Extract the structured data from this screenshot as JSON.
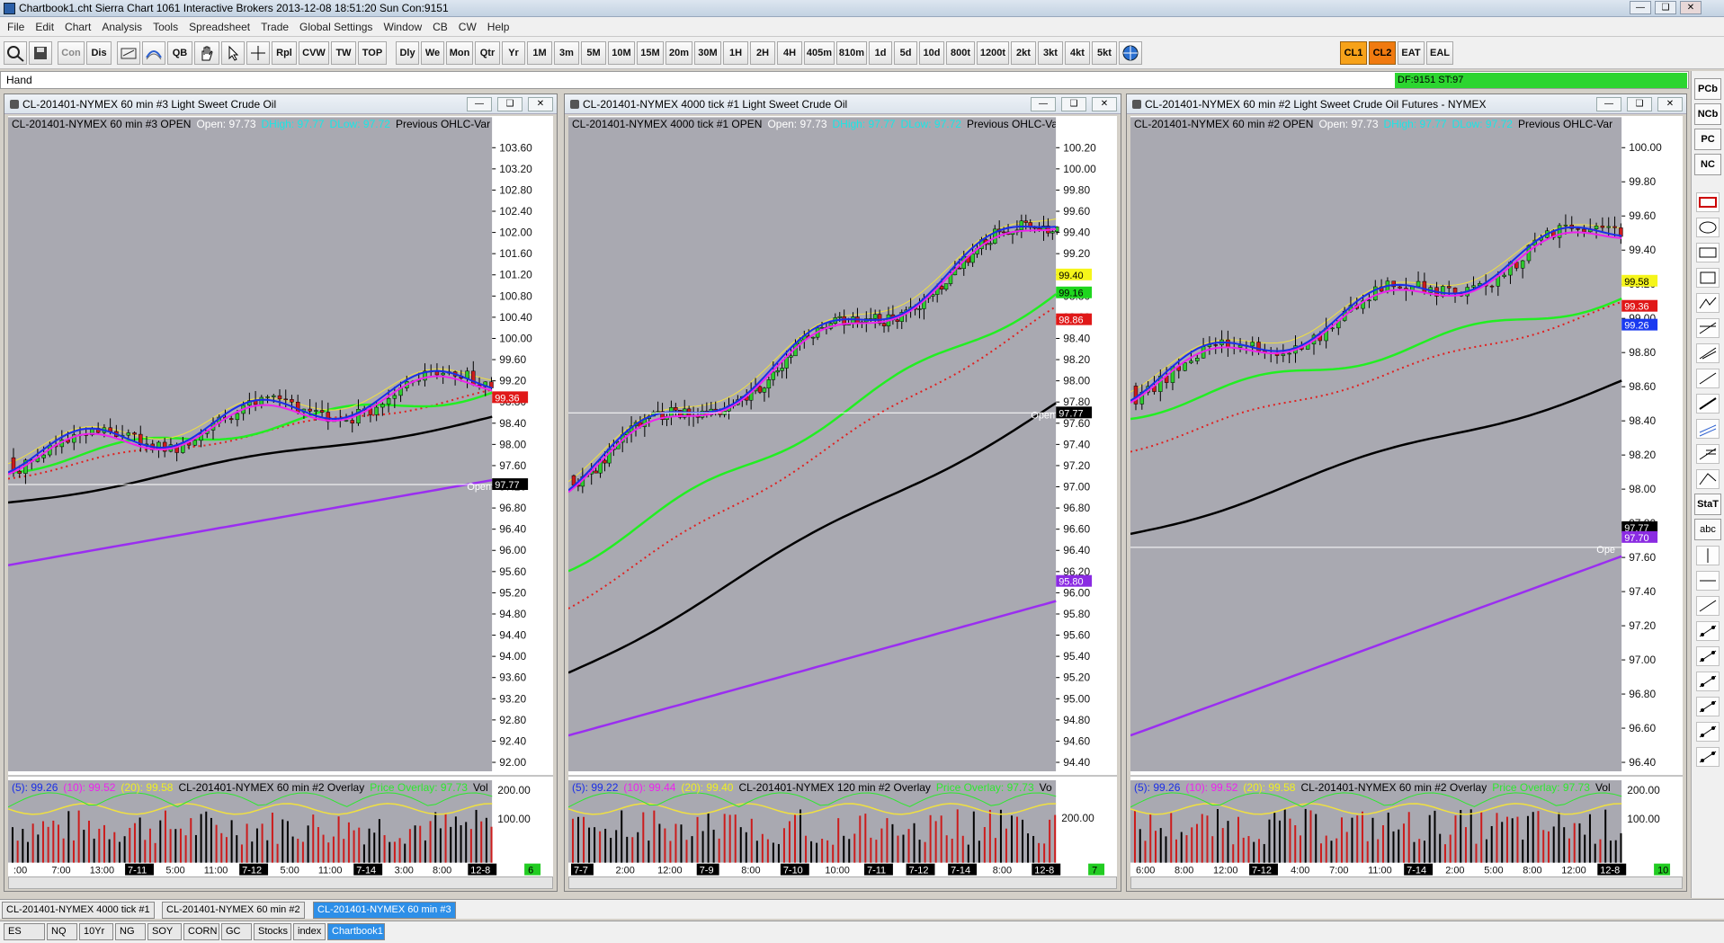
{
  "window": {
    "title": "Chartbook1.cht  Sierra Chart 1061 Interactive Brokers 2013-12-08  18:51:20 Sun  Con:9151",
    "minimize": "—",
    "restore": "❑",
    "close": "✕"
  },
  "menu": [
    "File",
    "Edit",
    "Chart",
    "Analysis",
    "Tools",
    "Spreadsheet",
    "Trade",
    "Global Settings",
    "Window",
    "CB",
    "CW",
    "Help"
  ],
  "toolbar": {
    "tools": [
      "Con",
      "Dis",
      "QB",
      "Rpl",
      "CVW",
      "TW",
      "TOP"
    ],
    "periods": [
      "Dly",
      "We",
      "Mon",
      "Qtr",
      "Yr",
      "1M",
      "3m",
      "5M",
      "10M",
      "15M",
      "20m",
      "30M",
      "1H",
      "2H",
      "4H",
      "405m",
      "810m",
      "1d",
      "5d",
      "10d",
      "800t",
      "1200t",
      "2kt",
      "3kt",
      "4kt",
      "5kt"
    ],
    "symbols": [
      "CL1",
      "CL2",
      "EAT",
      "EAL"
    ]
  },
  "status": {
    "mode": "Hand",
    "df": "DF:9151  ST:97"
  },
  "right_tools": [
    "PCb",
    "NCb",
    "PC",
    "NC",
    "StaT",
    "abc"
  ],
  "charts": [
    {
      "title": "CL-201401-NYMEX  60 min  #3  Light Sweet Crude Oil",
      "header": "CL-201401-NYMEX  60 min  #3 OPEN",
      "open": "Open: 97.73",
      "dhigh": "DHigh: 97.77",
      "dlow": "DLow: 97.72",
      "prev": "Previous OHLC-Var",
      "prices": [
        "103.60",
        "103.20",
        "102.80",
        "102.40",
        "102.00",
        "101.60",
        "101.20",
        "100.80",
        "100.40",
        "100.00",
        "99.60",
        "99.20",
        "98.80",
        "98.40",
        "98.00",
        "97.60",
        "97.20",
        "96.80",
        "96.40",
        "96.00",
        "95.60",
        "95.20",
        "94.80",
        "94.40",
        "94.00",
        "93.60",
        "93.20",
        "92.80",
        "92.40",
        "92.00"
      ],
      "labels": [
        {
          "text": "99.36",
          "bg": "#e01818"
        },
        {
          "text": "97.77",
          "bg": "#000000"
        }
      ],
      "ma": {
        "p5": "(5): 99.26",
        "p10": "(10): 99.52",
        "p20": "(20): 99.58",
        "name": "CL-201401-NYMEX  60 min  #2 Overlay",
        "po": "Price Overlay: 97.73",
        "vol": "Vol"
      },
      "vol_ticks": [
        "200.00",
        "100.00"
      ],
      "times": [
        ":00",
        "7:00",
        "13:00",
        "7-11",
        "5:00",
        "11:00",
        "7-12",
        "5:00",
        "11:00",
        "7-14",
        "3:00",
        "8:00",
        "12-8"
      ],
      "badge": "6",
      "open_line": "Open"
    },
    {
      "title": "CL-201401-NYMEX  4000 tick  #1  Light Sweet Crude Oil",
      "header": "CL-201401-NYMEX  4000 tick  #1 OPEN",
      "open": "Open: 97.73",
      "dhigh": "DHigh: 97.77",
      "dlow": "DLow: 97.72",
      "prev": "Previous OHLC-Va",
      "prices": [
        "100.20",
        "100.00",
        "99.80",
        "99.60",
        "99.40",
        "99.20",
        "99.00",
        "98.80",
        "98.60",
        "98.40",
        "98.20",
        "98.00",
        "97.80",
        "97.60",
        "97.40",
        "97.20",
        "97.00",
        "96.80",
        "96.60",
        "96.40",
        "96.20",
        "96.00",
        "95.80",
        "95.60",
        "95.40",
        "95.20",
        "95.00",
        "94.80",
        "94.60",
        "94.40"
      ],
      "labels": [
        {
          "text": "99.40",
          "bg": "#f5f51a"
        },
        {
          "text": "99.16",
          "bg": "#1ed61e"
        },
        {
          "text": "98.86",
          "bg": "#e01818"
        },
        {
          "text": "97.77",
          "bg": "#000000"
        },
        {
          "text": "95.80",
          "bg": "#8a2be2"
        }
      ],
      "ma": {
        "p5": "(5): 99.22",
        "p10": "(10): 99.44",
        "p20": "(20): 99.40",
        "name": "CL-201401-NYMEX  120 min  #2 Overlay",
        "po": "Price Overlay: 97.73",
        "vol": "Vo"
      },
      "vol_ticks": [
        "200.00"
      ],
      "times": [
        "7-7",
        "2:00",
        "12:00",
        "7-9",
        "8:00",
        "7-10",
        "10:00",
        "7-11",
        "7-12",
        "7-14",
        "8:00",
        "12-8"
      ],
      "badge": "7",
      "open_line": "Open"
    },
    {
      "title": "CL-201401-NYMEX  60 min  #2  Light Sweet Crude Oil Futures - NYMEX",
      "header": "CL-201401-NYMEX  60 min  #2 OPEN",
      "open": "Open: 97.73",
      "dhigh": "DHigh: 97.77",
      "dlow": "DLow: 97.72",
      "prev": "Previous OHLC-Var",
      "prices": [
        "100.00",
        "99.80",
        "99.60",
        "99.40",
        "99.20",
        "99.00",
        "98.80",
        "98.60",
        "98.40",
        "98.20",
        "98.00",
        "97.80",
        "97.60",
        "97.40",
        "97.20",
        "97.00",
        "96.80",
        "96.60",
        "96.40"
      ],
      "labels": [
        {
          "text": "99.58",
          "bg": "#f5f51a"
        },
        {
          "text": "99.36",
          "bg": "#e01818"
        },
        {
          "text": "99.26",
          "bg": "#1a3af0"
        },
        {
          "text": "97.77",
          "bg": "#000000"
        },
        {
          "text": "97.70",
          "bg": "#8a2be2"
        }
      ],
      "ma": {
        "p5": "(5): 99.26",
        "p10": "(10): 99.52",
        "p20": "(20): 99.58",
        "name": "CL-201401-NYMEX  60 min  #2 Overlay",
        "po": "Price Overlay: 97.73",
        "vol": "Vol"
      },
      "vol_ticks": [
        "200.00",
        "100.00"
      ],
      "times": [
        "6:00",
        "8:00",
        "12:00",
        "7-12",
        "4:00",
        "7:00",
        "11:00",
        "7-14",
        "2:00",
        "5:00",
        "8:00",
        "12:00",
        "12-8"
      ],
      "badge": "10",
      "open_line": "Ope"
    }
  ],
  "tabs_charts": [
    "CL-201401-NYMEX  4000 tick  #1",
    "CL-201401-NYMEX  60 min   #2",
    "CL-201401-NYMEX  60 min   #3"
  ],
  "tabs_books": [
    "ES",
    "NQ",
    "10Yr",
    "NG",
    "SOY",
    "CORN",
    "GC",
    "Stocks",
    "index",
    "Chartbook1"
  ],
  "colors": {
    "chart_bg": "#a9a9b1",
    "up": "#2ecc2e",
    "down": "#cc1c1c",
    "ma5": "#1a2ee8",
    "ma10": "#ee22ee",
    "ma20": "#f0e040",
    "ma_green": "#22ee22",
    "ma_dot": "#e02020",
    "ma_long": "#000000",
    "ma_purple": "#9a2ef0"
  }
}
